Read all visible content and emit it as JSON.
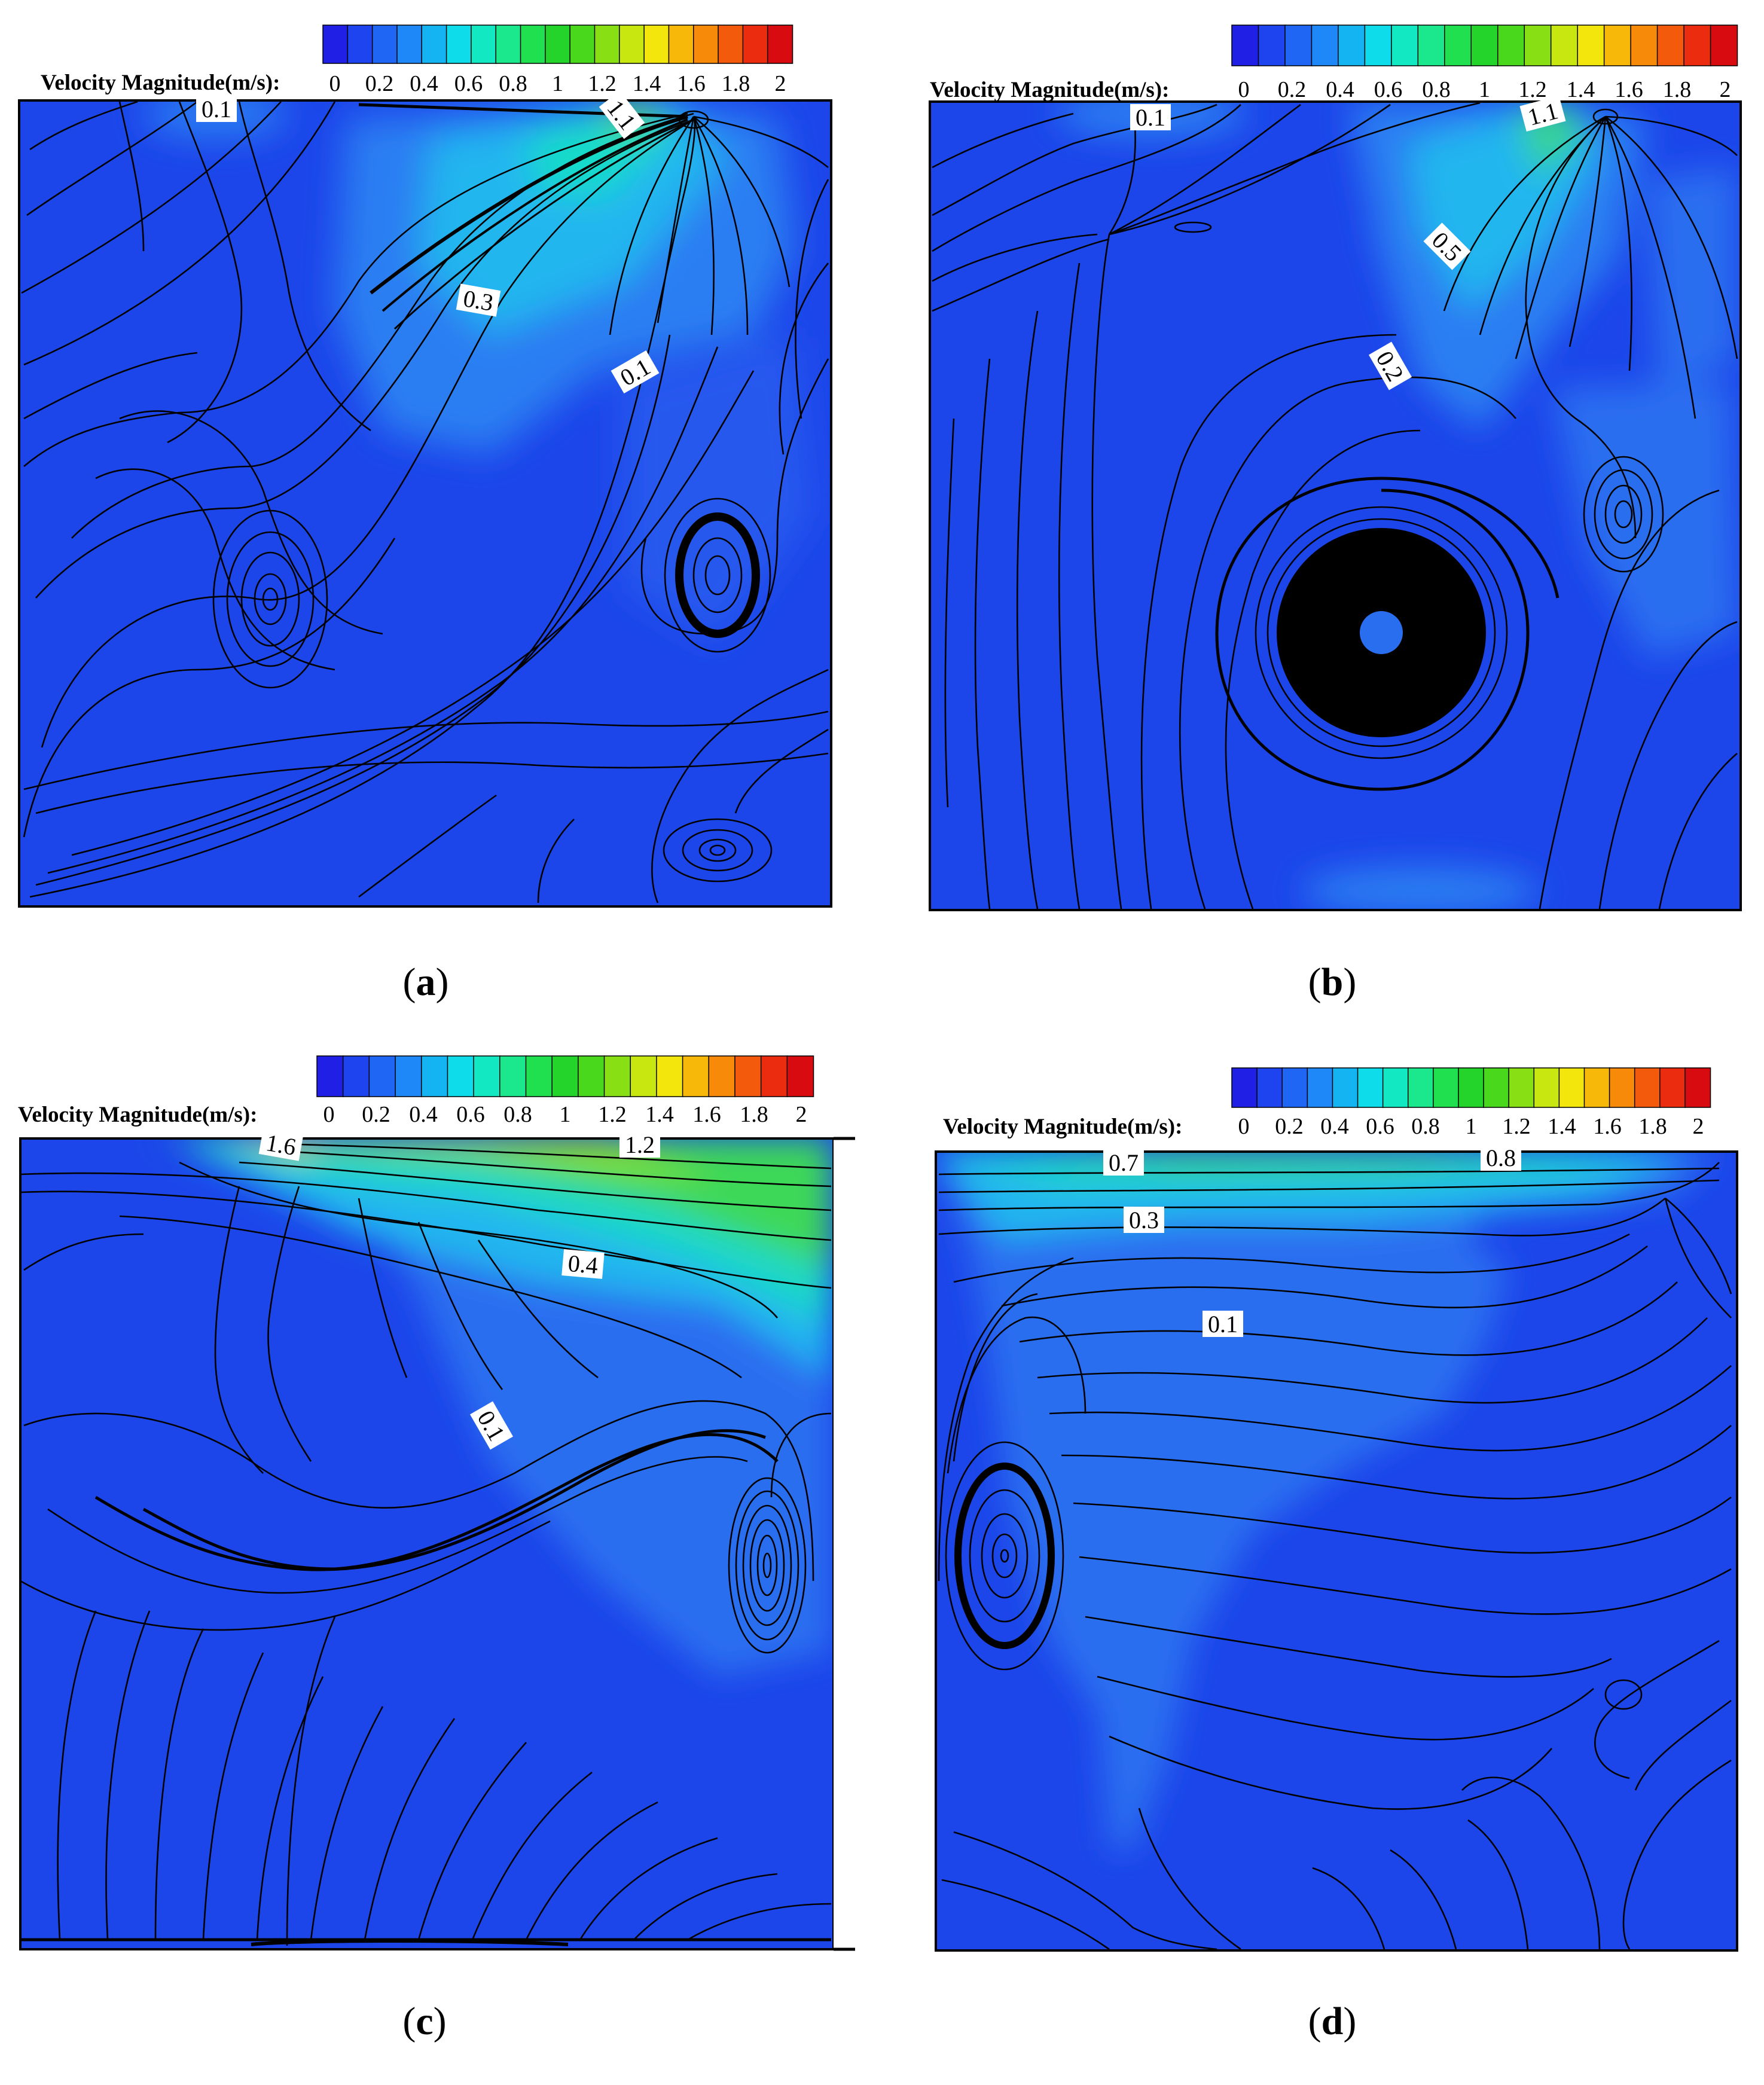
{
  "colorbar": {
    "title": "Velocity Magnitude(m/s):",
    "ticks": [
      "0",
      "0.2",
      "0.4",
      "0.6",
      "0.8",
      "1",
      "1.2",
      "1.4",
      "1.6",
      "1.8",
      "2"
    ],
    "colors": [
      "#1f1fe6",
      "#1e44ef",
      "#1f66f5",
      "#1e88f8",
      "#14b4f2",
      "#0fdcea",
      "#12e8c2",
      "#1be88c",
      "#20e050",
      "#24d42a",
      "#4ad81c",
      "#88e014",
      "#c8e60f",
      "#f2e60c",
      "#f8b80a",
      "#f88a0a",
      "#f45a0c",
      "#ec2c0e",
      "#d80c10"
    ]
  },
  "colors": {
    "background_flow": "#1c5ced",
    "low": "#1a3fe8",
    "mid": "#2c8ef5",
    "cyan": "#18d4ec",
    "green": "#4cd838",
    "streamline": "#000000"
  },
  "panels": [
    {
      "id": "a",
      "caption_letter": "a",
      "contour_labels": [
        {
          "text": "0.1",
          "angle": 0
        },
        {
          "text": "1.1",
          "angle": 52
        },
        {
          "text": "0.3",
          "angle": 10
        },
        {
          "text": "0.1",
          "angle": -30
        }
      ]
    },
    {
      "id": "b",
      "caption_letter": "b",
      "contour_labels": [
        {
          "text": "0.1",
          "angle": 0
        },
        {
          "text": "1.1",
          "angle": -15
        },
        {
          "text": "0.5",
          "angle": 45
        },
        {
          "text": "0.2",
          "angle": 60
        }
      ]
    },
    {
      "id": "c",
      "caption_letter": "c",
      "contour_labels": [
        {
          "text": "1.6",
          "angle": 10
        },
        {
          "text": "1.2",
          "angle": 0
        },
        {
          "text": "0.4",
          "angle": 5
        },
        {
          "text": "0.1",
          "angle": 60
        }
      ]
    },
    {
      "id": "d",
      "caption_letter": "d",
      "contour_labels": [
        {
          "text": "0.7",
          "angle": 0
        },
        {
          "text": "0.8",
          "angle": 0
        },
        {
          "text": "0.3",
          "angle": 0
        },
        {
          "text": "0.1",
          "angle": 0
        }
      ]
    }
  ]
}
